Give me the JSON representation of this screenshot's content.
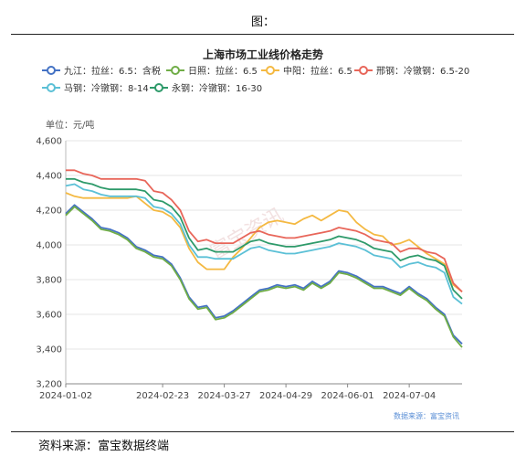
{
  "figure_label": "图：",
  "source_note": "资料来源：富宝数据终端",
  "chart_data": {
    "type": "line",
    "title": "上海市场工业线价格走势",
    "unit_label": "单位：元/吨",
    "watermark": "富宝资讯",
    "data_source": "数据来源：富宝资讯",
    "ylim": [
      3200,
      4600
    ],
    "yticks": [
      "3,200",
      "3,400",
      "3,600",
      "3,800",
      "4,000",
      "4,200",
      "4,400",
      "4,600"
    ],
    "x_tick_labels": [
      "2024-01-02",
      "2024-02-23",
      "2024-03-27",
      "2024-04-29",
      "2024-06-01",
      "2024-07-04"
    ],
    "grid": "horizontal",
    "legend_position": "top",
    "x": [
      "2024-01-02",
      "2024-01-05",
      "2024-01-10",
      "2024-01-15",
      "2024-01-20",
      "2024-01-25",
      "2024-01-30",
      "2024-02-04",
      "2024-02-09",
      "2024-02-14",
      "2024-02-19",
      "2024-02-23",
      "2024-02-28",
      "2024-03-04",
      "2024-03-09",
      "2024-03-14",
      "2024-03-19",
      "2024-03-24",
      "2024-03-27",
      "2024-04-01",
      "2024-04-06",
      "2024-04-11",
      "2024-04-16",
      "2024-04-21",
      "2024-04-26",
      "2024-04-29",
      "2024-05-04",
      "2024-05-09",
      "2024-05-14",
      "2024-05-19",
      "2024-05-24",
      "2024-05-29",
      "2024-06-01",
      "2024-06-06",
      "2024-06-11",
      "2024-06-16",
      "2024-06-21",
      "2024-06-26",
      "2024-07-01",
      "2024-07-04",
      "2024-07-09",
      "2024-07-14",
      "2024-07-19",
      "2024-07-24",
      "2024-07-29",
      "2024-08-01"
    ],
    "series": [
      {
        "name": "九江：拉丝：6.5：含税",
        "color": "#4472c4",
        "values": [
          4180,
          4230,
          4190,
          4150,
          4100,
          4090,
          4070,
          4040,
          3990,
          3970,
          3940,
          3930,
          3890,
          3810,
          3700,
          3640,
          3650,
          3580,
          3590,
          3620,
          3660,
          3700,
          3740,
          3750,
          3770,
          3760,
          3770,
          3750,
          3790,
          3760,
          3790,
          3850,
          3840,
          3820,
          3790,
          3760,
          3760,
          3740,
          3720,
          3760,
          3720,
          3690,
          3640,
          3600,
          3480,
          3430
        ]
      },
      {
        "name": "日照：拉丝：6.5",
        "color": "#70ad47",
        "values": [
          4170,
          4220,
          4180,
          4140,
          4090,
          4080,
          4060,
          4030,
          3980,
          3960,
          3930,
          3920,
          3880,
          3800,
          3690,
          3630,
          3640,
          3570,
          3580,
          3610,
          3650,
          3690,
          3730,
          3740,
          3760,
          3750,
          3760,
          3740,
          3780,
          3750,
          3780,
          3840,
          3830,
          3810,
          3780,
          3750,
          3750,
          3730,
          3710,
          3750,
          3710,
          3680,
          3630,
          3590,
          3470,
          3410
        ]
      },
      {
        "name": "中阳：拉丝：6.5",
        "color": "#f4b942",
        "values": [
          4300,
          4280,
          4270,
          4270,
          4270,
          4270,
          4270,
          4270,
          4280,
          4240,
          4200,
          4190,
          4160,
          4100,
          3980,
          3900,
          3860,
          3860,
          3860,
          3930,
          3980,
          4040,
          4100,
          4130,
          4140,
          4130,
          4120,
          4150,
          4170,
          4140,
          4170,
          4200,
          4190,
          4130,
          4090,
          4060,
          4050,
          4000,
          4010,
          4030,
          3990,
          3950,
          3920,
          3890,
          3770,
          3730
        ]
      },
      {
        "name": "邢钢：冷镦钢：6.5-20",
        "color": "#e8665a",
        "values": [
          4430,
          4430,
          4410,
          4400,
          4380,
          4380,
          4380,
          4380,
          4380,
          4370,
          4310,
          4300,
          4260,
          4200,
          4080,
          4020,
          4030,
          4010,
          4010,
          4010,
          4040,
          4070,
          4080,
          4060,
          4050,
          4040,
          4040,
          4050,
          4060,
          4070,
          4080,
          4100,
          4090,
          4080,
          4060,
          4030,
          4020,
          4010,
          3960,
          3980,
          3980,
          3960,
          3950,
          3920,
          3780,
          3730
        ]
      },
      {
        "name": "马钢：冷镦钢：8-14",
        "color": "#5bc0d6",
        "values": [
          4340,
          4350,
          4320,
          4310,
          4290,
          4280,
          4280,
          4280,
          4280,
          4270,
          4220,
          4210,
          4180,
          4120,
          4000,
          3930,
          3930,
          3920,
          3920,
          3920,
          3950,
          3980,
          3990,
          3970,
          3960,
          3950,
          3950,
          3960,
          3970,
          3980,
          3990,
          4010,
          4000,
          3990,
          3970,
          3940,
          3930,
          3920,
          3870,
          3890,
          3900,
          3880,
          3870,
          3840,
          3700,
          3660
        ]
      },
      {
        "name": "永钢：冷镦钢：16-30",
        "color": "#2e9a6a",
        "values": [
          4380,
          4380,
          4360,
          4350,
          4330,
          4320,
          4320,
          4320,
          4320,
          4310,
          4260,
          4250,
          4220,
          4160,
          4040,
          3970,
          3980,
          3960,
          3960,
          3960,
          3990,
          4020,
          4030,
          4010,
          4000,
          3990,
          3990,
          4000,
          4010,
          4020,
          4030,
          4050,
          4040,
          4030,
          4010,
          3980,
          3970,
          3960,
          3910,
          3930,
          3940,
          3920,
          3910,
          3880,
          3740,
          3690
        ]
      }
    ]
  }
}
